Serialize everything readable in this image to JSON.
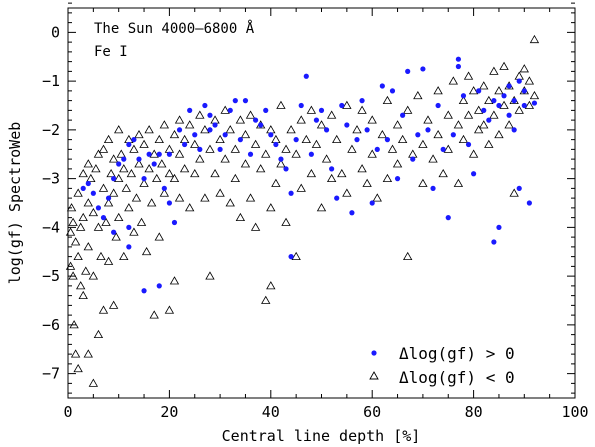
{
  "chart_data": {
    "type": "scatter",
    "title": "",
    "xlabel": "Central line depth [%]",
    "ylabel": "log(gf) SpectroWeb",
    "xlim": [
      0,
      100
    ],
    "ylim": [
      -7.5,
      0.5
    ],
    "x_ticks": [
      0,
      20,
      40,
      60,
      80,
      100
    ],
    "y_ticks": [
      -7,
      -6,
      -5,
      -4,
      -3,
      -2,
      -1,
      0
    ],
    "grid": false,
    "legend_position": "bottom-right",
    "annotations": [
      "The Sun  4000–6800 Å",
      "Fe I"
    ],
    "colors": {
      "positive": "#1a1aff",
      "negative": "#000000"
    },
    "series": [
      {
        "name": "Δlog(gf) > 0",
        "marker": "filled-circle",
        "points": [
          [
            3,
            -3.2
          ],
          [
            4,
            -3.1
          ],
          [
            5,
            -3.3
          ],
          [
            6,
            -3.6
          ],
          [
            7,
            -3.8
          ],
          [
            8,
            -3.4
          ],
          [
            9,
            -4.1
          ],
          [
            9,
            -3.0
          ],
          [
            10,
            -2.7
          ],
          [
            11,
            -2.6
          ],
          [
            12,
            -2.3
          ],
          [
            12,
            -4.0
          ],
          [
            12,
            -4.4
          ],
          [
            13,
            -2.2
          ],
          [
            14,
            -2.6
          ],
          [
            15,
            -3.0
          ],
          [
            15,
            -5.3
          ],
          [
            16,
            -2.5
          ],
          [
            17,
            -2.7
          ],
          [
            18,
            -2.5
          ],
          [
            18,
            -5.2
          ],
          [
            19,
            -3.2
          ],
          [
            20,
            -2.5
          ],
          [
            20,
            -3.5
          ],
          [
            21,
            -3.9
          ],
          [
            22,
            -2.0
          ],
          [
            23,
            -2.3
          ],
          [
            24,
            -1.6
          ],
          [
            25,
            -2.1
          ],
          [
            26,
            -2.4
          ],
          [
            27,
            -1.5
          ],
          [
            28,
            -2.0
          ],
          [
            28,
            -1.7
          ],
          [
            29,
            -1.9
          ],
          [
            30,
            -2.4
          ],
          [
            31,
            -2.1
          ],
          [
            32,
            -1.6
          ],
          [
            33,
            -1.4
          ],
          [
            34,
            -2.2
          ],
          [
            35,
            -1.4
          ],
          [
            36,
            -2.5
          ],
          [
            37,
            -1.8
          ],
          [
            38,
            -1.9
          ],
          [
            39,
            -1.6
          ],
          [
            40,
            -2.1
          ],
          [
            41,
            -2.3
          ],
          [
            42,
            -2.6
          ],
          [
            43,
            -2.8
          ],
          [
            44,
            -3.3
          ],
          [
            44,
            -4.6
          ],
          [
            45,
            -2.2
          ],
          [
            46,
            -1.5
          ],
          [
            47,
            -0.9
          ],
          [
            48,
            -2.5
          ],
          [
            49,
            -1.8
          ],
          [
            50,
            -1.6
          ],
          [
            51,
            -2.0
          ],
          [
            52,
            -2.8
          ],
          [
            53,
            -3.4
          ],
          [
            54,
            -1.5
          ],
          [
            55,
            -1.9
          ],
          [
            56,
            -3.7
          ],
          [
            57,
            -2.2
          ],
          [
            58,
            -1.4
          ],
          [
            59,
            -2.0
          ],
          [
            60,
            -3.5
          ],
          [
            61,
            -2.4
          ],
          [
            62,
            -1.1
          ],
          [
            63,
            -2.2
          ],
          [
            64,
            -1.2
          ],
          [
            65,
            -3.0
          ],
          [
            66,
            -1.7
          ],
          [
            67,
            -0.8
          ],
          [
            68,
            -2.6
          ],
          [
            69,
            -2.1
          ],
          [
            70,
            -0.75
          ],
          [
            71,
            -2.0
          ],
          [
            72,
            -3.2
          ],
          [
            73,
            -1.5
          ],
          [
            74,
            -2.4
          ],
          [
            75,
            -3.8
          ],
          [
            76,
            -2.1
          ],
          [
            77,
            -0.55
          ],
          [
            77,
            -0.7
          ],
          [
            78,
            -1.3
          ],
          [
            79,
            -2.3
          ],
          [
            80,
            -2.9
          ],
          [
            81,
            -1.2
          ],
          [
            82,
            -1.6
          ],
          [
            83,
            -1.8
          ],
          [
            84,
            -4.3
          ],
          [
            84,
            -1.4
          ],
          [
            85,
            -1.5
          ],
          [
            85,
            -4.0
          ],
          [
            86,
            -1.3
          ],
          [
            87,
            -1.7
          ],
          [
            87,
            -1.1
          ],
          [
            88,
            -2.0
          ],
          [
            88,
            -1.4
          ],
          [
            89,
            -1.0
          ],
          [
            89,
            -3.2
          ],
          [
            90,
            -1.2
          ],
          [
            90,
            -1.5
          ],
          [
            91,
            -3.5
          ],
          [
            92,
            -1.45
          ]
        ]
      },
      {
        "name": "Δlog(gf) < 0",
        "marker": "open-triangle",
        "points": [
          [
            0.5,
            -4.1
          ],
          [
            0.5,
            -4.8
          ],
          [
            0.7,
            -3.6
          ],
          [
            1,
            -5.0
          ],
          [
            1,
            -3.9
          ],
          [
            1.2,
            -6.0
          ],
          [
            1.5,
            -4.3
          ],
          [
            1.5,
            -6.6
          ],
          [
            2,
            -3.3
          ],
          [
            2,
            -4.6
          ],
          [
            2,
            -6.9
          ],
          [
            2.5,
            -5.2
          ],
          [
            2.5,
            -4.0
          ],
          [
            3,
            -2.9
          ],
          [
            3,
            -3.8
          ],
          [
            3,
            -5.4
          ],
          [
            3.5,
            -4.9
          ],
          [
            4,
            -2.7
          ],
          [
            4,
            -3.5
          ],
          [
            4,
            -4.4
          ],
          [
            4,
            -6.6
          ],
          [
            4.5,
            -3.0
          ],
          [
            5,
            -3.7
          ],
          [
            5,
            -5.0
          ],
          [
            5,
            -7.2
          ],
          [
            5.5,
            -2.8
          ],
          [
            6,
            -2.5
          ],
          [
            6,
            -4.0
          ],
          [
            6,
            -6.2
          ],
          [
            6.5,
            -4.6
          ],
          [
            7,
            -3.2
          ],
          [
            7,
            -2.4
          ],
          [
            7,
            -5.7
          ],
          [
            7.5,
            -3.9
          ],
          [
            8,
            -2.2
          ],
          [
            8,
            -3.5
          ],
          [
            8,
            -4.7
          ],
          [
            8.5,
            -2.9
          ],
          [
            9,
            -2.6
          ],
          [
            9,
            -3.3
          ],
          [
            9,
            -5.6
          ],
          [
            9.5,
            -4.2
          ],
          [
            10,
            -2.0
          ],
          [
            10,
            -3.0
          ],
          [
            10,
            -3.8
          ],
          [
            10.5,
            -2.5
          ],
          [
            11,
            -2.8
          ],
          [
            11,
            -4.6
          ],
          [
            11.5,
            -3.2
          ],
          [
            12,
            -2.2
          ],
          [
            12,
            -3.6
          ],
          [
            12.5,
            -2.9
          ],
          [
            13,
            -2.4
          ],
          [
            13,
            -4.1
          ],
          [
            13.5,
            -3.4
          ],
          [
            14,
            -2.1
          ],
          [
            14,
            -2.7
          ],
          [
            14.5,
            -3.9
          ],
          [
            15,
            -2.3
          ],
          [
            15,
            -3.1
          ],
          [
            15.5,
            -4.5
          ],
          [
            16,
            -2.0
          ],
          [
            16,
            -2.8
          ],
          [
            16.5,
            -3.5
          ],
          [
            17,
            -2.5
          ],
          [
            17,
            -5.8
          ],
          [
            17.5,
            -3.0
          ],
          [
            18,
            -2.2
          ],
          [
            18,
            -4.2
          ],
          [
            18.5,
            -2.7
          ],
          [
            19,
            -1.9
          ],
          [
            19,
            -3.3
          ],
          [
            20,
            -2.4
          ],
          [
            20,
            -5.7
          ],
          [
            20,
            -2.9
          ],
          [
            21,
            -2.1
          ],
          [
            21,
            -3.0
          ],
          [
            21,
            -5.1
          ],
          [
            22,
            -1.8
          ],
          [
            22,
            -2.5
          ],
          [
            22,
            -3.4
          ],
          [
            23,
            -2.2
          ],
          [
            23,
            -2.8
          ],
          [
            24,
            -1.9
          ],
          [
            24,
            -3.6
          ],
          [
            25,
            -2.3
          ],
          [
            25,
            -2.9
          ],
          [
            26,
            -1.7
          ],
          [
            26,
            -2.6
          ],
          [
            27,
            -2.0
          ],
          [
            27,
            -3.4
          ],
          [
            28,
            -2.4
          ],
          [
            28,
            -5.0
          ],
          [
            29,
            -1.8
          ],
          [
            29,
            -2.9
          ],
          [
            30,
            -2.2
          ],
          [
            30,
            -3.3
          ],
          [
            31,
            -1.6
          ],
          [
            31,
            -2.6
          ],
          [
            32,
            -2.0
          ],
          [
            32,
            -3.5
          ],
          [
            33,
            -2.4
          ],
          [
            33,
            -3.0
          ],
          [
            34,
            -1.8
          ],
          [
            34,
            -3.8
          ],
          [
            35,
            -2.1
          ],
          [
            35,
            -2.7
          ],
          [
            36,
            -1.7
          ],
          [
            36,
            -3.4
          ],
          [
            37,
            -2.3
          ],
          [
            37,
            -4.0
          ],
          [
            38,
            -1.9
          ],
          [
            38,
            -2.8
          ],
          [
            39,
            -2.5
          ],
          [
            39,
            -5.5
          ],
          [
            40,
            -2.0
          ],
          [
            40,
            -3.6
          ],
          [
            40,
            -5.2
          ],
          [
            41,
            -2.2
          ],
          [
            41,
            -3.1
          ],
          [
            42,
            -1.5
          ],
          [
            42,
            -2.7
          ],
          [
            43,
            -2.4
          ],
          [
            43,
            -3.9
          ],
          [
            44,
            -2.0
          ],
          [
            45,
            -2.5
          ],
          [
            45,
            -4.6
          ],
          [
            46,
            -1.8
          ],
          [
            46,
            -3.2
          ],
          [
            47,
            -2.2
          ],
          [
            48,
            -1.6
          ],
          [
            48,
            -2.9
          ],
          [
            49,
            -2.3
          ],
          [
            50,
            -1.9
          ],
          [
            50,
            -3.6
          ],
          [
            51,
            -2.6
          ],
          [
            52,
            -1.7
          ],
          [
            52,
            -3.0
          ],
          [
            53,
            -2.2
          ],
          [
            54,
            -2.9
          ],
          [
            55,
            -1.5
          ],
          [
            55,
            -3.3
          ],
          [
            56,
            -2.4
          ],
          [
            57,
            -2.0
          ],
          [
            58,
            -2.8
          ],
          [
            58,
            -1.6
          ],
          [
            59,
            -3.1
          ],
          [
            60,
            -1.8
          ],
          [
            60,
            -2.5
          ],
          [
            61,
            -3.4
          ],
          [
            62,
            -2.1
          ],
          [
            63,
            -1.4
          ],
          [
            63,
            -3.0
          ],
          [
            64,
            -2.4
          ],
          [
            65,
            -1.9
          ],
          [
            65,
            -2.7
          ],
          [
            66,
            -2.2
          ],
          [
            67,
            -4.6
          ],
          [
            67,
            -1.6
          ],
          [
            68,
            -2.5
          ],
          [
            69,
            -1.3
          ],
          [
            70,
            -2.3
          ],
          [
            70,
            -3.1
          ],
          [
            71,
            -1.8
          ],
          [
            72,
            -2.6
          ],
          [
            73,
            -1.2
          ],
          [
            73,
            -2.1
          ],
          [
            74,
            -2.9
          ],
          [
            75,
            -1.7
          ],
          [
            75,
            -2.4
          ],
          [
            76,
            -1.0
          ],
          [
            77,
            -1.9
          ],
          [
            77,
            -3.1
          ],
          [
            78,
            -1.4
          ],
          [
            78,
            -2.2
          ],
          [
            79,
            -0.9
          ],
          [
            79,
            -1.7
          ],
          [
            80,
            -2.5
          ],
          [
            80,
            -1.2
          ],
          [
            81,
            -1.6
          ],
          [
            81,
            -2.0
          ],
          [
            82,
            -1.1
          ],
          [
            82,
            -1.9
          ],
          [
            83,
            -1.4
          ],
          [
            83,
            -2.3
          ],
          [
            84,
            -0.8
          ],
          [
            84,
            -1.7
          ],
          [
            85,
            -1.2
          ],
          [
            85,
            -2.1
          ],
          [
            86,
            -1.5
          ],
          [
            86,
            -0.7
          ],
          [
            87,
            -1.9
          ],
          [
            87,
            -1.1
          ],
          [
            88,
            -1.4
          ],
          [
            88,
            -3.3
          ],
          [
            89,
            -0.9
          ],
          [
            89,
            -1.6
          ],
          [
            90,
            -1.2
          ],
          [
            90,
            -0.75
          ],
          [
            91,
            -1.5
          ],
          [
            91,
            -1.0
          ],
          [
            92,
            -0.15
          ],
          [
            92,
            -1.3
          ]
        ]
      }
    ]
  }
}
